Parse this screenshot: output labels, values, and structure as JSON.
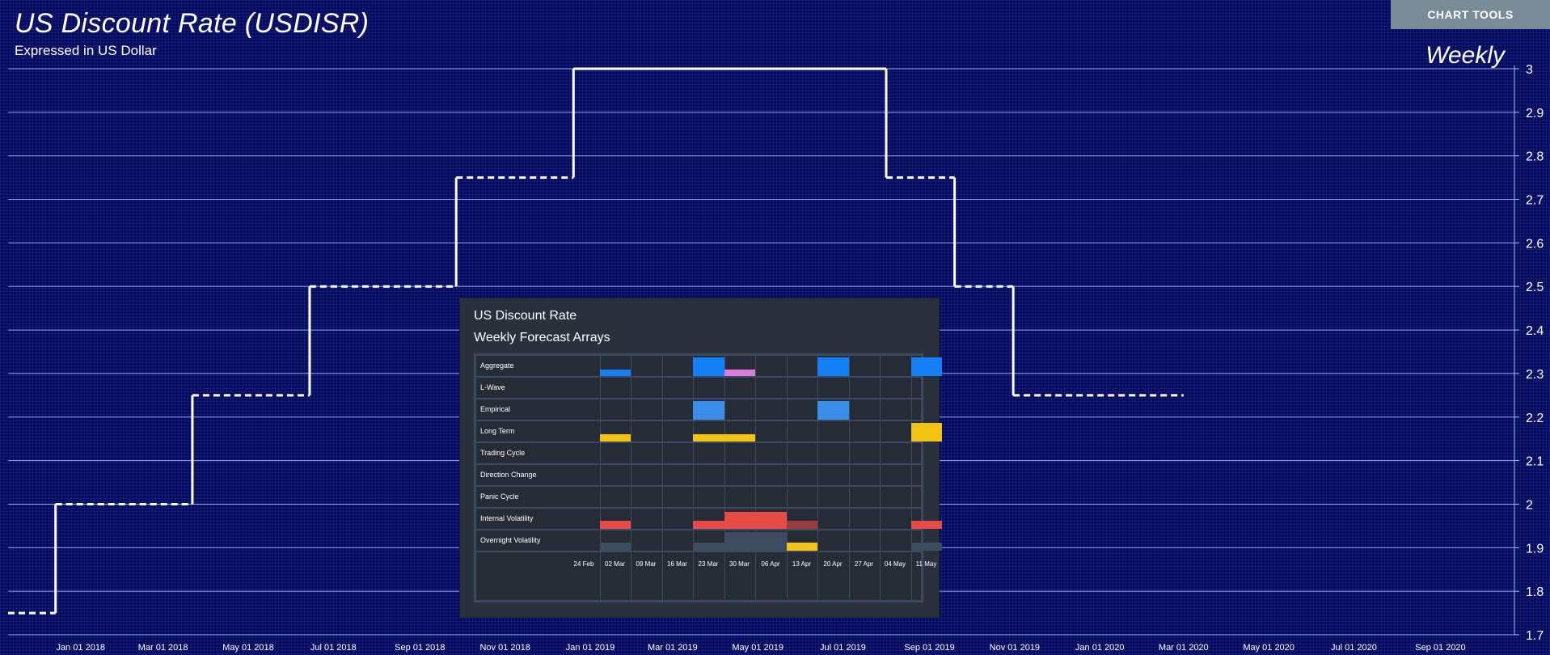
{
  "header": {
    "title": "US Discount Rate (USDISR)",
    "subtitle": "Expressed in US Dollar",
    "frequency": "Weekly",
    "chart_tools_label": "CHART TOOLS"
  },
  "colors": {
    "background": "#050a5c",
    "gridline": "#9ec5ff",
    "series": "#ffffff",
    "panel_bg": "#2a313d",
    "cell_blue": "#1380f5",
    "cell_light_blue": "#3a8fe8",
    "cell_pink": "#dd7bdc",
    "cell_yellow": "#f2c310",
    "cell_red": "#e84b46",
    "cell_dark_red": "#9a3b3c",
    "cell_slate": "#3c4b5e"
  },
  "chart_data": {
    "type": "line",
    "title": "US Discount Rate (USDISR)",
    "subtitle": "Expressed in US Dollar",
    "frequency": "Weekly",
    "step_style": "step with dashed horizontal segments",
    "ylim": [
      1.7,
      3.0
    ],
    "y_ticks": [
      "1.7",
      "1.8",
      "1.9",
      "2",
      "2.1",
      "2.2",
      "2.3",
      "2.4",
      "2.5",
      "2.6",
      "2.7",
      "2.8",
      "2.9",
      "3"
    ],
    "x_ticks": [
      "Jan 01 2018",
      "Mar 01 2018",
      "May 01 2018",
      "Jul 01 2018",
      "Sep 01 2018",
      "Nov 01 2018",
      "Jan 01 2019",
      "Mar 01 2019",
      "May 01 2019",
      "Jul 01 2019",
      "Sep 01 2019",
      "Nov 01 2019",
      "Jan 01 2020",
      "Mar 01 2020",
      "May 01 2020",
      "Jul 01 2020",
      "Sep 01 2020"
    ],
    "xlim": [
      "2017-11-10",
      "2020-10-24"
    ],
    "grid": "horizontal",
    "series": [
      {
        "points": [
          {
            "x": "2017-11-10",
            "y": 1.75
          },
          {
            "x": "2017-12-14",
            "y": 2.0
          },
          {
            "x": "2018-03-22",
            "y": 2.25
          },
          {
            "x": "2018-06-14",
            "y": 2.5
          },
          {
            "x": "2018-09-27",
            "y": 2.75
          },
          {
            "x": "2018-12-20",
            "y": 3.0
          },
          {
            "x": "2019-08-01",
            "y": 2.75
          },
          {
            "x": "2019-09-19",
            "y": 2.5
          },
          {
            "x": "2019-10-31",
            "y": 2.25
          },
          {
            "x": "2020-03-01",
            "y": 2.25
          }
        ]
      }
    ]
  },
  "forecast_panel": {
    "title": "US Discount Rate",
    "subtitle": "Weekly Forecast Arrays",
    "rows": [
      "Aggregate",
      "L-Wave",
      "Empirical",
      "Long Term",
      "Trading Cycle",
      "Direction Change",
      "Panic Cycle",
      "Internal Volatility",
      "Overnight Volatility"
    ],
    "dates": [
      "24 Feb",
      "02 Mar",
      "09 Mar",
      "16 Mar",
      "23 Mar",
      "30 Mar",
      "06 Apr",
      "13 Apr",
      "20 Apr",
      "27 Apr",
      "04 May",
      "11 May"
    ],
    "cells": [
      {
        "row": 0,
        "col": 1,
        "level": 0.35,
        "color": "cell_blue"
      },
      {
        "row": 0,
        "col": 4,
        "level": 1.0,
        "color": "cell_blue"
      },
      {
        "row": 0,
        "col": 5,
        "level": 0.35,
        "color": "cell_pink"
      },
      {
        "row": 0,
        "col": 8,
        "level": 1.0,
        "color": "cell_blue"
      },
      {
        "row": 0,
        "col": 11,
        "level": 1.0,
        "color": "cell_blue"
      },
      {
        "row": 2,
        "col": 4,
        "level": 1.0,
        "color": "cell_light_blue"
      },
      {
        "row": 2,
        "col": 8,
        "level": 1.0,
        "color": "cell_light_blue"
      },
      {
        "row": 3,
        "col": 1,
        "level": 0.4,
        "color": "cell_yellow"
      },
      {
        "row": 3,
        "col": 4,
        "level": 0.4,
        "color": "cell_yellow"
      },
      {
        "row": 3,
        "col": 5,
        "level": 0.4,
        "color": "cell_yellow"
      },
      {
        "row": 3,
        "col": 11,
        "level": 1.0,
        "color": "cell_yellow"
      },
      {
        "row": 7,
        "col": 1,
        "level": 0.45,
        "color": "cell_red"
      },
      {
        "row": 7,
        "col": 4,
        "level": 0.45,
        "color": "cell_red"
      },
      {
        "row": 7,
        "col": 5,
        "level": 0.9,
        "color": "cell_red"
      },
      {
        "row": 7,
        "col": 6,
        "level": 0.9,
        "color": "cell_red"
      },
      {
        "row": 7,
        "col": 7,
        "level": 0.45,
        "color": "cell_dark_red"
      },
      {
        "row": 7,
        "col": 11,
        "level": 0.45,
        "color": "cell_red"
      },
      {
        "row": 8,
        "col": 1,
        "level": 0.45,
        "color": "cell_slate"
      },
      {
        "row": 8,
        "col": 4,
        "level": 0.45,
        "color": "cell_slate"
      },
      {
        "row": 8,
        "col": 5,
        "level": 1.0,
        "color": "cell_slate"
      },
      {
        "row": 8,
        "col": 6,
        "level": 1.0,
        "color": "cell_slate"
      },
      {
        "row": 8,
        "col": 7,
        "level": 0.45,
        "color": "cell_yellow"
      },
      {
        "row": 8,
        "col": 11,
        "level": 0.45,
        "color": "cell_slate"
      }
    ]
  }
}
